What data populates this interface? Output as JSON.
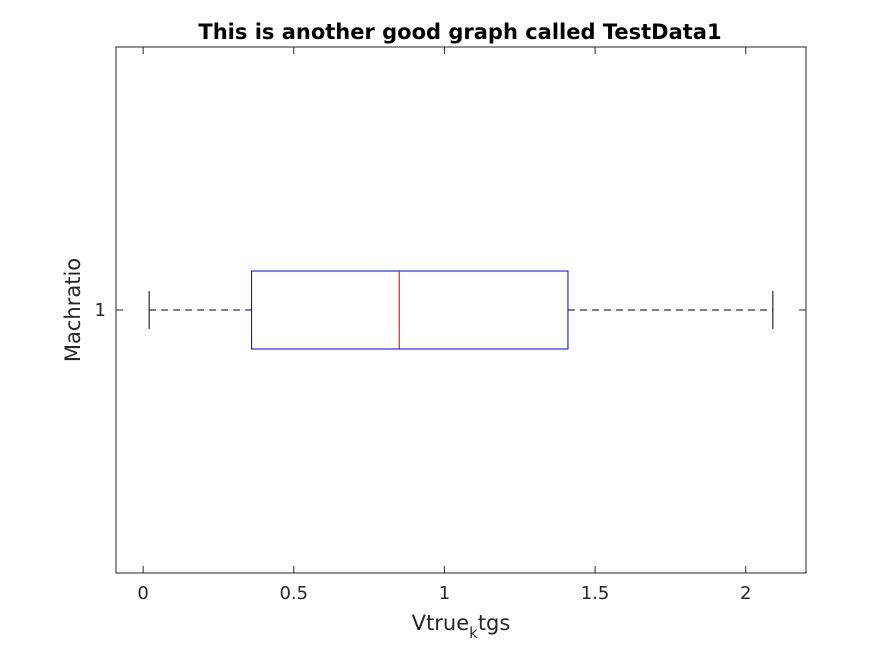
{
  "chart_data": {
    "type": "boxplot",
    "orientation": "horizontal",
    "title": "This is another good graph called TestData1",
    "xlabel": {
      "main": "Vtrue",
      "subscript": "k",
      "suffix": "tgs"
    },
    "ylabel": "Machratio",
    "xlim": [
      -0.09,
      2.2
    ],
    "ylim": [
      0.5,
      1.5
    ],
    "xticks": [
      0,
      0.5,
      1,
      1.5,
      2
    ],
    "xtick_labels": [
      "0",
      "0.5",
      "1",
      "1.5",
      "2"
    ],
    "yticks": [
      1
    ],
    "ytick_labels": [
      "1"
    ],
    "grid": false,
    "boxes": [
      {
        "category": "1",
        "whisker_low": 0.02,
        "q1": 0.36,
        "median": 0.85,
        "q3": 1.41,
        "whisker_high": 2.09
      }
    ],
    "colors": {
      "box": "#0000cc",
      "median": "#cc0000",
      "whisker": "#000000"
    }
  }
}
